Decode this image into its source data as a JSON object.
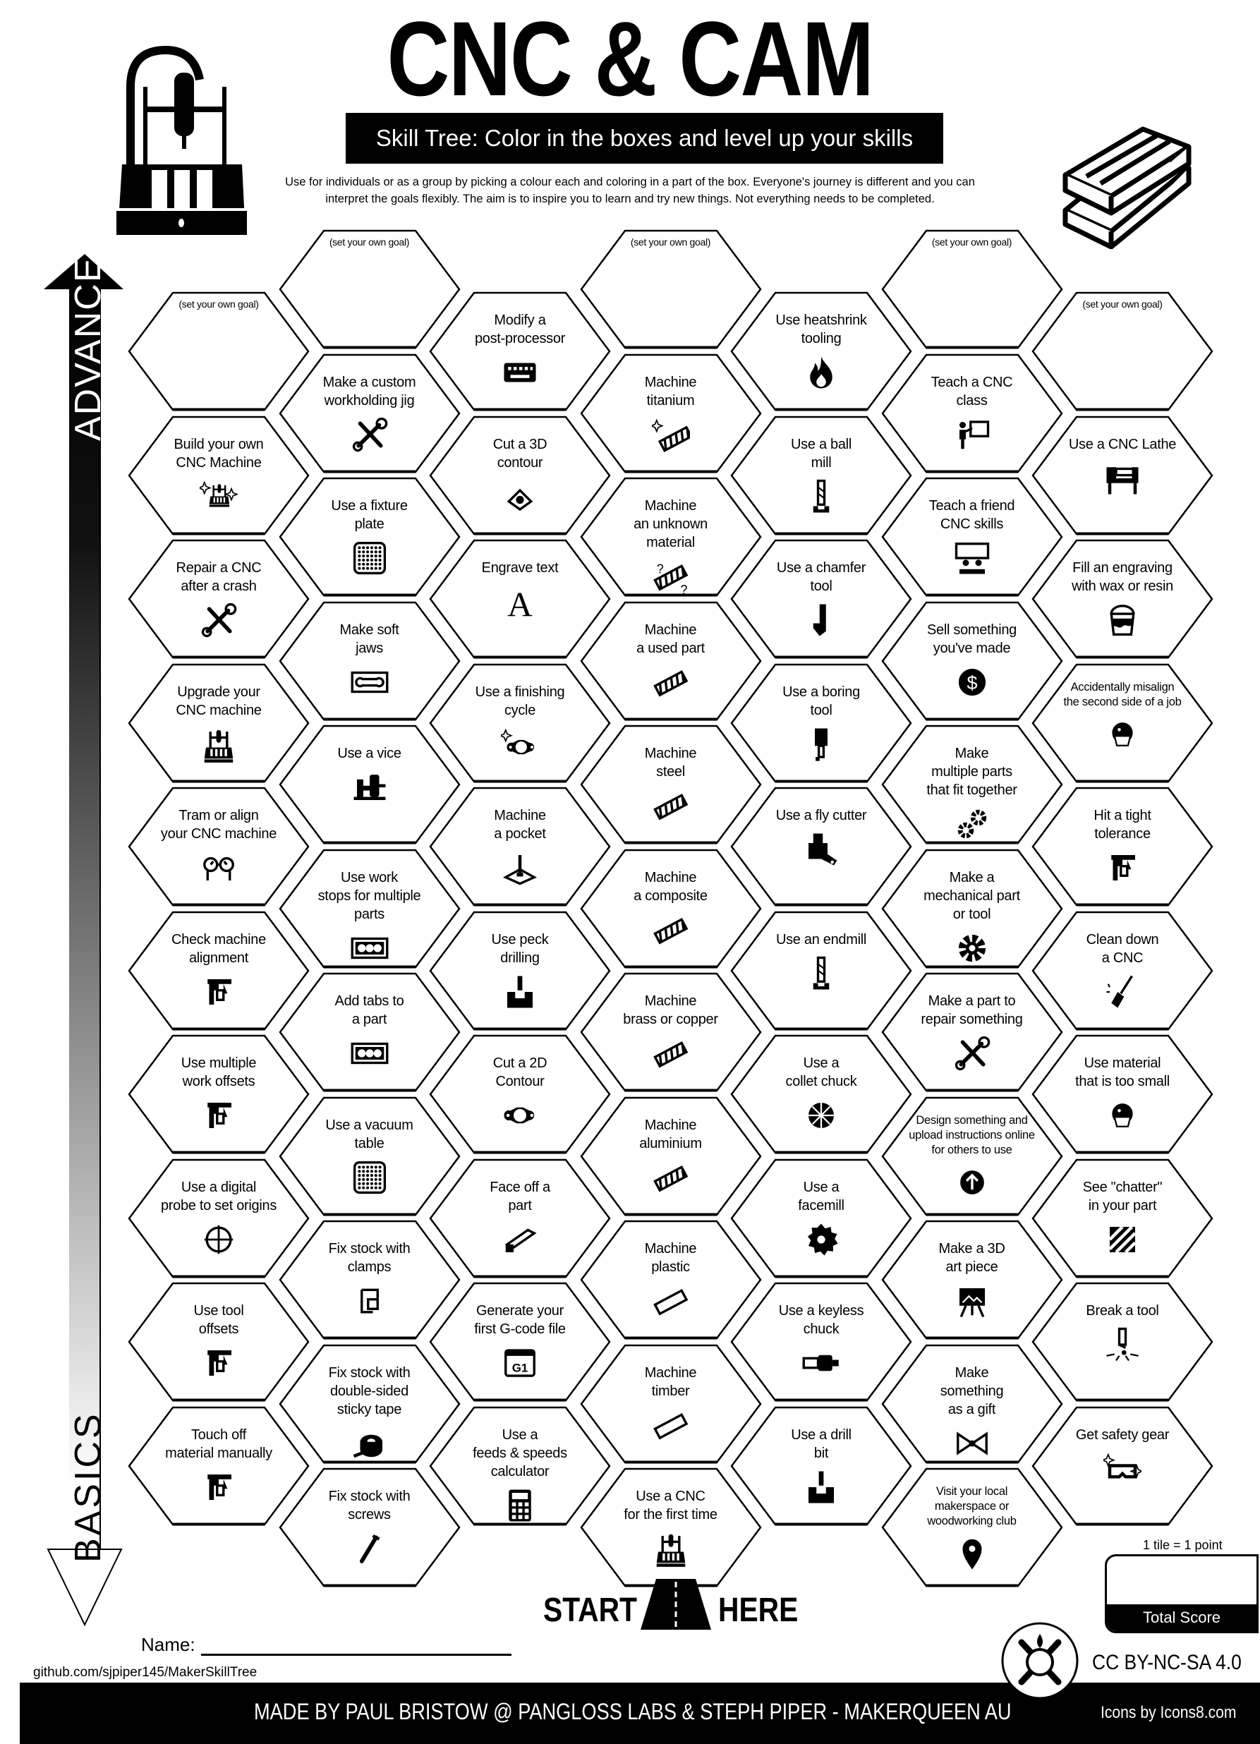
{
  "header": {
    "title": "CNC & CAM",
    "subtitle": "Skill Tree:  Color in the boxes and level up your skills",
    "description": "Use for individuals or as a group by picking a colour each and coloring in a part of the box.  Everyone's journey is different and you can\ninterpret the goals flexibly.  The aim is to inspire you to learn and try new things. Not everything needs to be completed."
  },
  "axis": {
    "top_label": "ADVANCED",
    "bottom_label": "BASICS"
  },
  "grid": {
    "columns": [
      {
        "hexes": [
          {
            "label": "(set your own goal)",
            "goal": true,
            "icon": ""
          },
          {
            "label": "Build your own\nCNC Machine",
            "icon": "cnc-machine-sparkle"
          },
          {
            "label": "Repair a CNC\nafter a crash",
            "icon": "wrench-screwdriver"
          },
          {
            "label": "Upgrade your\nCNC machine",
            "icon": "cnc-machine"
          },
          {
            "label": "Tram or align\nyour CNC machine",
            "icon": "gauges"
          },
          {
            "label": "Check machine\nalignment",
            "icon": "caliper"
          },
          {
            "label": "Use multiple\nwork offsets",
            "icon": "caliper"
          },
          {
            "label": "Use a digital\nprobe to set origins",
            "icon": "crosshair"
          },
          {
            "label": "Use tool\noffsets",
            "icon": "caliper"
          },
          {
            "label": "Touch off\nmaterial manually",
            "icon": "caliper"
          }
        ]
      },
      {
        "hexes": [
          {
            "label": "(set your own goal)",
            "goal": true,
            "icon": ""
          },
          {
            "label": "Make a custom\nworkholding jig",
            "icon": "wrench-screwdriver"
          },
          {
            "label": "Use a fixture\nplate",
            "icon": "grid-plate"
          },
          {
            "label": "Make soft\njaws",
            "icon": "soft-jaws"
          },
          {
            "label": "Use a vice",
            "icon": "vice"
          },
          {
            "label": "Use work\nstops for multiple\nparts",
            "icon": "work-stops"
          },
          {
            "label": "Add tabs to\na part",
            "icon": "work-stops"
          },
          {
            "label": "Use a vacuum\ntable",
            "icon": "grid-plate"
          },
          {
            "label": "Fix stock with\nclamps",
            "icon": "clamp"
          },
          {
            "label": "Fix stock with\ndouble-sided\nsticky tape",
            "icon": "tape"
          },
          {
            "label": "Fix stock with\nscrews",
            "icon": "screw"
          }
        ]
      },
      {
        "hexes": [
          {
            "label": "Modify a\npost-processor",
            "icon": "keyboard"
          },
          {
            "label": "Cut a 3D\ncontour",
            "icon": "contour-3d"
          },
          {
            "label": "Engrave text",
            "icon": "letter-a"
          },
          {
            "label": "Use a finishing\ncycle",
            "icon": "gasket-sparkle"
          },
          {
            "label": "Machine\na pocket",
            "icon": "pocket"
          },
          {
            "label": "Use peck\ndrilling",
            "icon": "drill-hole"
          },
          {
            "label": "Cut a 2D\nContour",
            "icon": "gasket"
          },
          {
            "label": "Face off a\npart",
            "icon": "face-bar"
          },
          {
            "label": "Generate your\nfirst G-code file",
            "icon": "gcode-file"
          },
          {
            "label": "Use a\nfeeds & speeds\ncalculator",
            "icon": "calculator"
          }
        ]
      },
      {
        "hexes": [
          {
            "label": "(set your own goal)",
            "goal": true,
            "icon": ""
          },
          {
            "label": "Machine\ntitanium",
            "icon": "material-sparkle"
          },
          {
            "label": "Machine\nan unknown\nmaterial",
            "icon": "material-question"
          },
          {
            "label": "Machine\na used part",
            "icon": "material"
          },
          {
            "label": "Machine\nsteel",
            "icon": "material"
          },
          {
            "label": "Machine\na composite",
            "icon": "material"
          },
          {
            "label": "Machine\nbrass or copper",
            "icon": "material"
          },
          {
            "label": "Machine\naluminium",
            "icon": "material"
          },
          {
            "label": "Machine\nplastic",
            "icon": "material-plain"
          },
          {
            "label": "Machine\ntimber",
            "icon": "material-plain"
          },
          {
            "label": "Use a CNC\nfor the first time",
            "icon": "cnc-machine"
          }
        ]
      },
      {
        "hexes": [
          {
            "label": "Use heatshrink\ntooling",
            "icon": "flame"
          },
          {
            "label": "Use a ball\nmill",
            "icon": "endmill"
          },
          {
            "label": "Use a chamfer\ntool",
            "icon": "chamfer-tool"
          },
          {
            "label": "Use a boring\ntool",
            "icon": "boring-bar"
          },
          {
            "label": "Use a fly cutter",
            "icon": "fly-cutter"
          },
          {
            "label": "Use an endmill",
            "icon": "endmill"
          },
          {
            "label": "Use a\ncollet chuck",
            "icon": "collet"
          },
          {
            "label": "Use a\nfacemill",
            "icon": "facemill"
          },
          {
            "label": "Use a keyless\nchuck",
            "icon": "keyless-chuck"
          },
          {
            "label": "Use a drill\nbit",
            "icon": "drill-hole"
          }
        ]
      },
      {
        "hexes": [
          {
            "label": "(set your own goal)",
            "goal": true,
            "icon": ""
          },
          {
            "label": "Teach a CNC\nclass",
            "icon": "teacher"
          },
          {
            "label": "Teach a friend\nCNC skills",
            "icon": "teach-friend"
          },
          {
            "label": "Sell something\nyou've made",
            "icon": "dollar"
          },
          {
            "label": "Make\nmultiple parts\nthat fit together",
            "icon": "gears"
          },
          {
            "label": "Make a\nmechanical part\nor tool",
            "icon": "gear"
          },
          {
            "label": "Make a part to\nrepair something",
            "icon": "wrench-screwdriver"
          },
          {
            "label": "Design something and\nupload instructions online\nfor others to use",
            "icon": "upload"
          },
          {
            "label": "Make a 3D\nart piece",
            "icon": "easel"
          },
          {
            "label": "Make\nsomething\nas a gift",
            "icon": "gift-bow"
          },
          {
            "label": "Visit your local\nmakerspace or\nwoodworking club",
            "icon": "location-pin"
          }
        ]
      },
      {
        "hexes": [
          {
            "label": "(set your own goal)",
            "goal": true,
            "icon": ""
          },
          {
            "label": "Use a CNC Lathe",
            "icon": "lathe"
          },
          {
            "label": "Fill an engraving\nwith wax or resin",
            "icon": "paint-bucket"
          },
          {
            "label": "Accidentally misalign\nthe second side of a job",
            "icon": "masked-face"
          },
          {
            "label": "Hit a tight\ntolerance",
            "icon": "caliper"
          },
          {
            "label": "Clean down\na CNC",
            "icon": "broom"
          },
          {
            "label": "Use material\nthat is too small",
            "icon": "masked-face"
          },
          {
            "label": "See \"chatter\"\nin your part",
            "icon": "hatch"
          },
          {
            "label": "Break a tool",
            "icon": "broken-tool"
          },
          {
            "label": "Get safety gear",
            "icon": "goggles"
          }
        ]
      }
    ]
  },
  "start": {
    "left": "START",
    "right": "HERE"
  },
  "footer": {
    "name_label": "Name:",
    "github": "github.com/sjpiper145/MakerSkillTree",
    "made_by": "MADE BY PAUL BRISTOW @ PANGLOSS LABS & STEPH PIPER  -  MAKERQUEEN AU",
    "icons_credit": "Icons by Icons8.com",
    "license": "CC BY-NC-SA 4.0"
  },
  "score": {
    "rule": "1 tile = 1 point",
    "label": "Total Score",
    "value": ""
  }
}
